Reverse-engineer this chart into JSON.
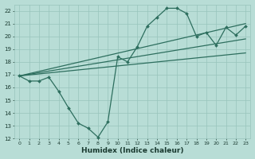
{
  "xlabel": "Humidex (Indice chaleur)",
  "xlim": [
    -0.5,
    23.5
  ],
  "ylim": [
    12,
    22.5
  ],
  "yticks": [
    12,
    13,
    14,
    15,
    16,
    17,
    18,
    19,
    20,
    21,
    22
  ],
  "xticks": [
    0,
    1,
    2,
    3,
    4,
    5,
    6,
    7,
    8,
    9,
    10,
    11,
    12,
    13,
    14,
    15,
    16,
    17,
    18,
    19,
    20,
    21,
    22,
    23
  ],
  "background_color": "#b8ddd6",
  "grid_color": "#98c4bc",
  "line_color": "#2d6e5e",
  "main_line": {
    "x": [
      0,
      1,
      2,
      3,
      4,
      5,
      6,
      7,
      8,
      9,
      10,
      11,
      12,
      13,
      14,
      15,
      16,
      17,
      18,
      19,
      20,
      21,
      22,
      23
    ],
    "y": [
      16.9,
      16.5,
      16.5,
      16.8,
      15.7,
      14.4,
      13.2,
      12.8,
      12.1,
      13.3,
      18.4,
      18.0,
      19.2,
      20.8,
      21.5,
      22.2,
      22.2,
      21.8,
      20.0,
      20.3,
      19.3,
      20.7,
      20.1,
      20.8
    ]
  },
  "ref_lines": [
    {
      "x": [
        0,
        23
      ],
      "y": [
        16.9,
        21.0
      ]
    },
    {
      "x": [
        0,
        23
      ],
      "y": [
        16.9,
        19.8
      ]
    },
    {
      "x": [
        0,
        23
      ],
      "y": [
        16.9,
        18.7
      ]
    }
  ],
  "figsize": [
    3.2,
    2.0
  ],
  "dpi": 100
}
